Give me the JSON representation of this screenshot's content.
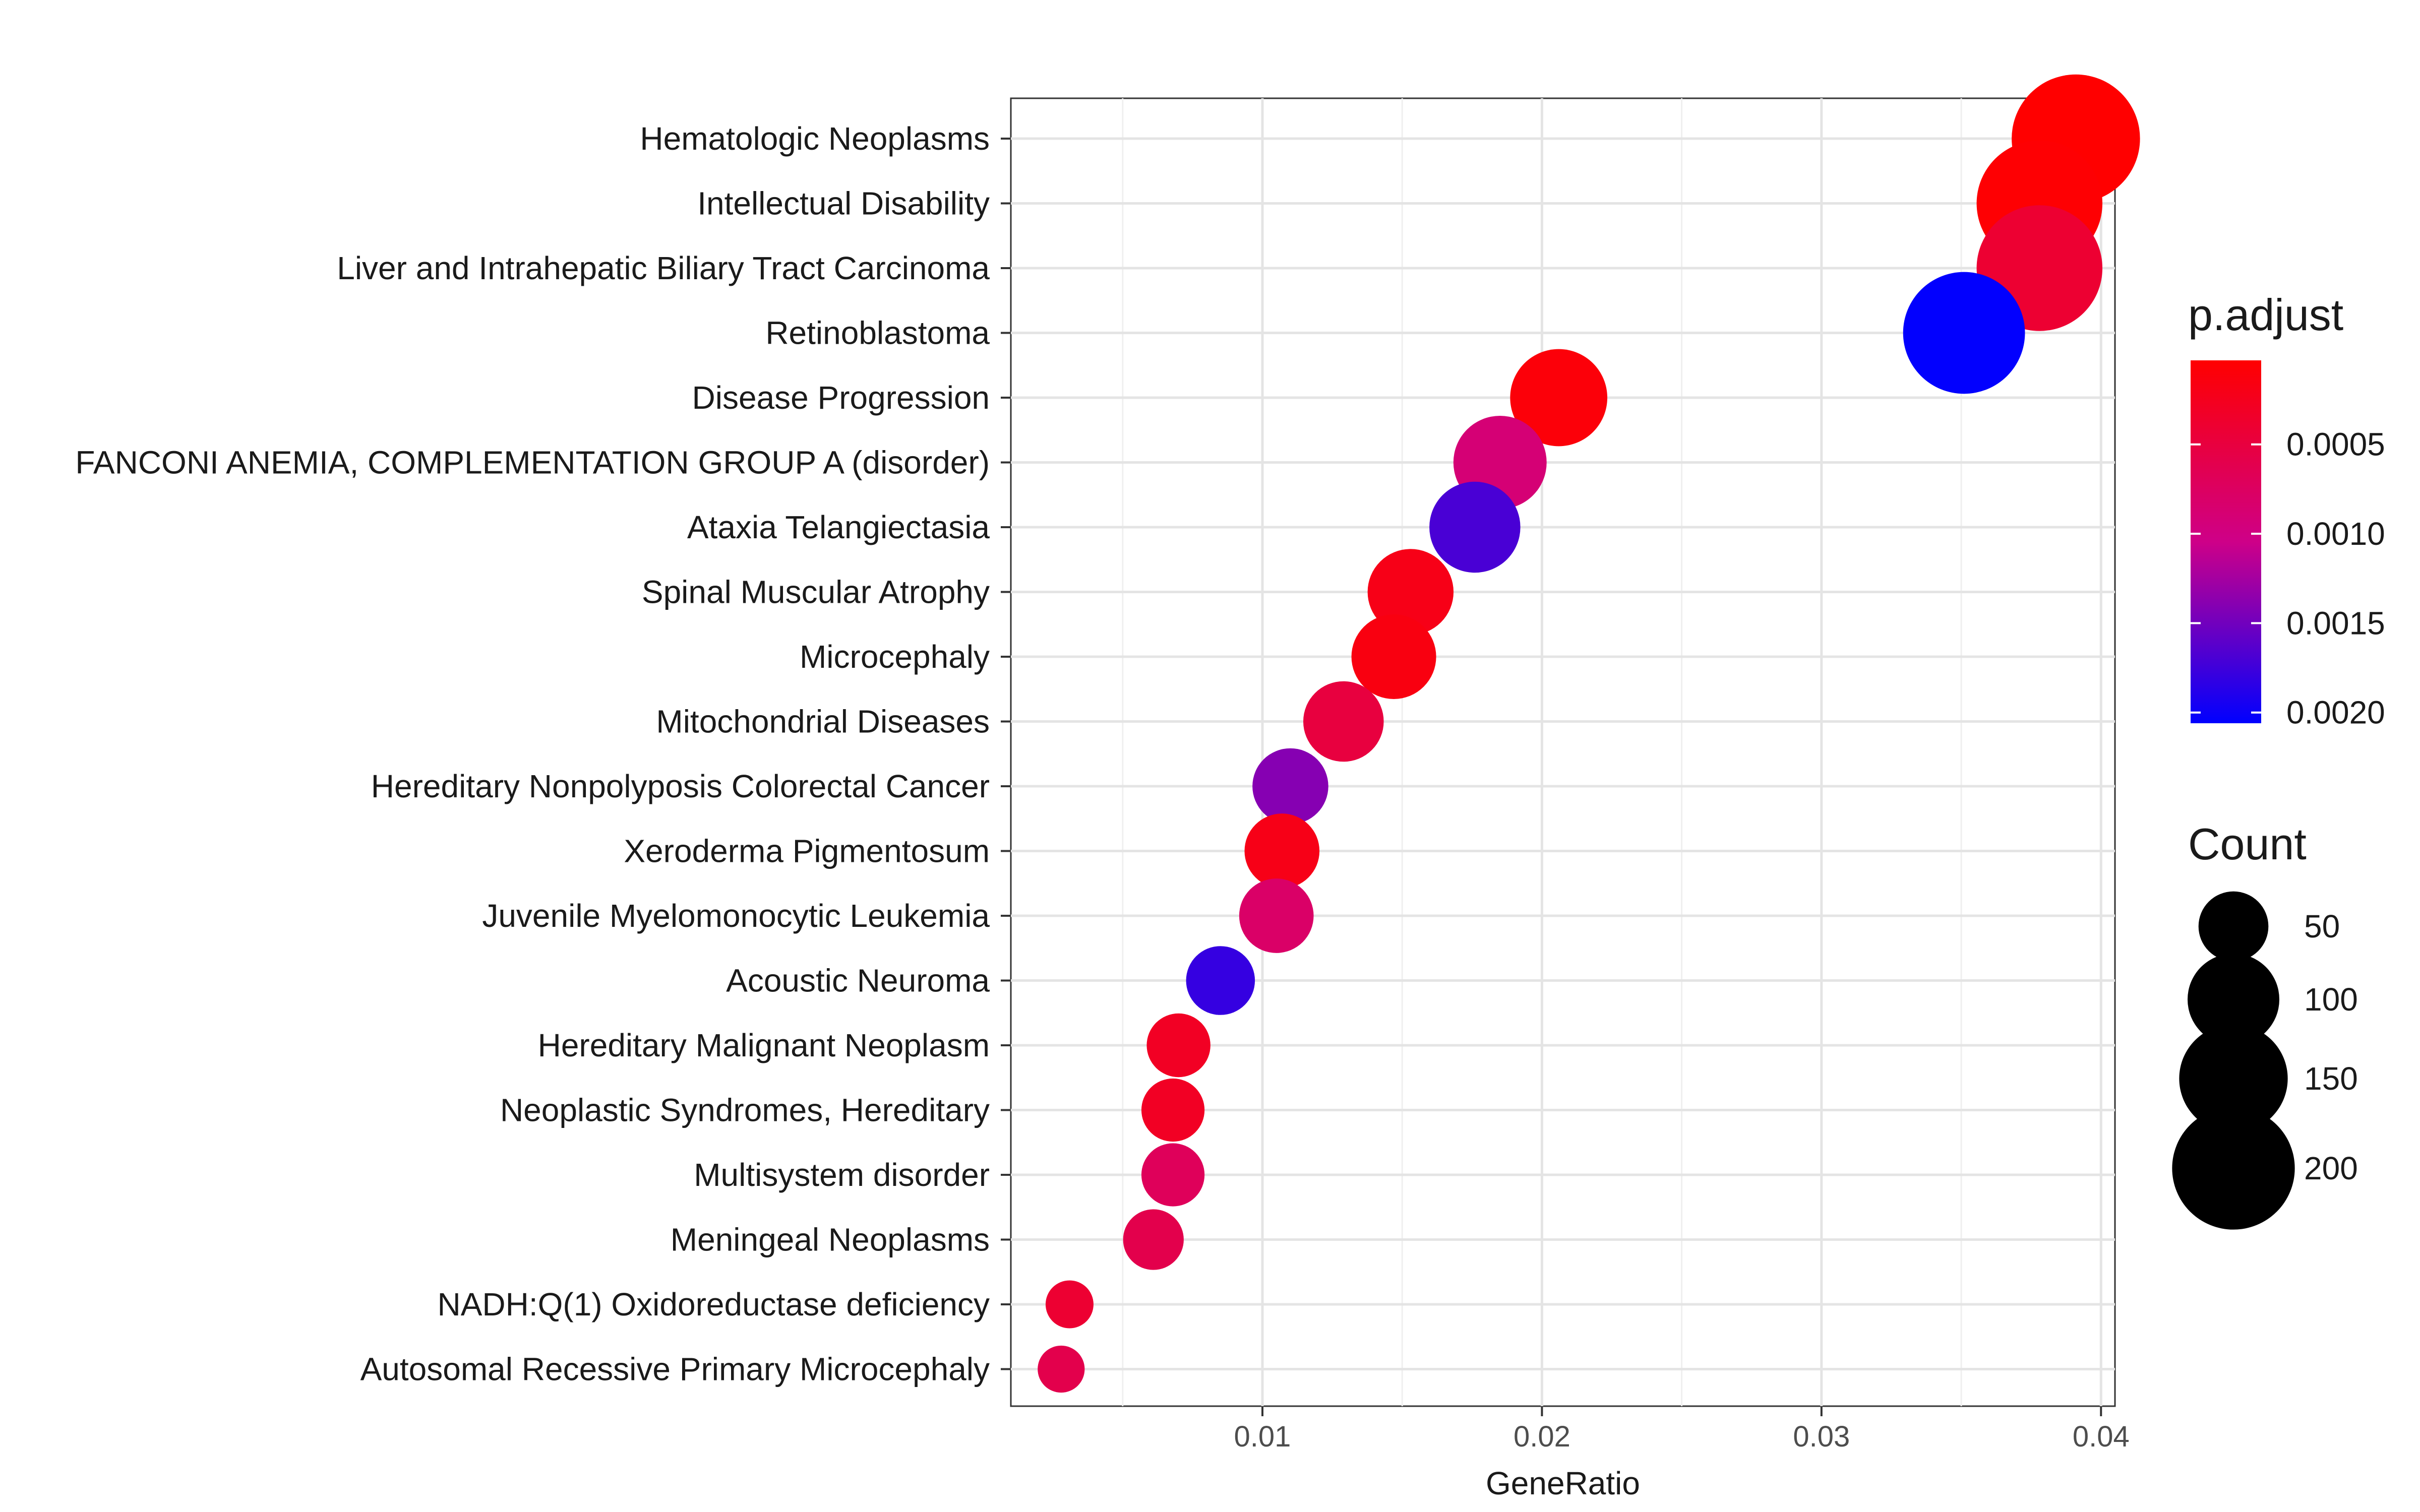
{
  "chart_data": {
    "type": "scatter",
    "title": "",
    "xlabel": "GeneRatio",
    "ylabel": "",
    "xlim": [
      0.001,
      0.0405
    ],
    "xticks": [
      0.01,
      0.02,
      0.03,
      0.04
    ],
    "xtick_labels": [
      "0.01",
      "0.02",
      "0.03",
      "0.04"
    ],
    "grid": true,
    "legend_position": "right",
    "color_legend": {
      "title": "p.adjust",
      "range": [
        3e-05,
        0.00206
      ],
      "low_color": "#ff0000",
      "high_color": "#0000ff",
      "ticks": [
        0.0005,
        0.001,
        0.0015,
        0.002
      ],
      "tick_labels": [
        "0.0005",
        "0.0010",
        "0.0015",
        "0.0020"
      ]
    },
    "size_legend": {
      "title": "Count",
      "values": [
        50,
        100,
        150,
        200
      ],
      "labels": [
        "50",
        "100",
        "150",
        "200"
      ]
    },
    "points": [
      {
        "label": "Hematologic Neoplasms",
        "gene_ratio": 0.0391,
        "p_adjust": 3e-05,
        "count": 222
      },
      {
        "label": "Intellectual Disability",
        "gene_ratio": 0.0378,
        "p_adjust": 5e-05,
        "count": 212
      },
      {
        "label": "Liver and Intrahepatic Biliary Tract Carcinoma",
        "gene_ratio": 0.0378,
        "p_adjust": 0.0004,
        "count": 212
      },
      {
        "label": "Retinoblastoma",
        "gene_ratio": 0.0351,
        "p_adjust": 0.00205,
        "count": 197
      },
      {
        "label": "Disease Progression",
        "gene_ratio": 0.0206,
        "p_adjust": 0.0001,
        "count": 115
      },
      {
        "label": "FANCONI ANEMIA, COMPLEMENTATION GROUP A (disorder)",
        "gene_ratio": 0.0185,
        "p_adjust": 0.0009,
        "count": 104
      },
      {
        "label": "Ataxia Telangiectasia",
        "gene_ratio": 0.0176,
        "p_adjust": 0.0017,
        "count": 98
      },
      {
        "label": "Spinal Muscular Atrophy",
        "gene_ratio": 0.0153,
        "p_adjust": 0.0002,
        "count": 85
      },
      {
        "label": "Microcephaly",
        "gene_ratio": 0.0147,
        "p_adjust": 0.00015,
        "count": 82
      },
      {
        "label": "Mitochondrial Diseases",
        "gene_ratio": 0.0129,
        "p_adjust": 0.0005,
        "count": 72
      },
      {
        "label": "Hereditary Nonpolyposis Colorectal Cancer",
        "gene_ratio": 0.011,
        "p_adjust": 0.0014,
        "count": 62
      },
      {
        "label": "Xeroderma Pigmentosum",
        "gene_ratio": 0.0107,
        "p_adjust": 0.0002,
        "count": 60
      },
      {
        "label": "Juvenile Myelomonocytic Leukemia",
        "gene_ratio": 0.0105,
        "p_adjust": 0.0008,
        "count": 59
      },
      {
        "label": "Acoustic Neuroma",
        "gene_ratio": 0.0085,
        "p_adjust": 0.0018,
        "count": 48
      },
      {
        "label": "Hereditary Malignant Neoplasm",
        "gene_ratio": 0.007,
        "p_adjust": 0.0003,
        "count": 39
      },
      {
        "label": "Neoplastic Syndromes, Hereditary",
        "gene_ratio": 0.0068,
        "p_adjust": 0.0003,
        "count": 38
      },
      {
        "label": "Multisystem disorder",
        "gene_ratio": 0.0068,
        "p_adjust": 0.0007,
        "count": 38
      },
      {
        "label": "Meningeal Neoplasms",
        "gene_ratio": 0.0061,
        "p_adjust": 0.0006,
        "count": 34
      },
      {
        "label": "NADH:Q(1) Oxidoreductase deficiency",
        "gene_ratio": 0.0031,
        "p_adjust": 0.0004,
        "count": 17
      },
      {
        "label": "Autosomal Recessive Primary Microcephaly",
        "gene_ratio": 0.0028,
        "p_adjust": 0.0006,
        "count": 16
      }
    ]
  }
}
